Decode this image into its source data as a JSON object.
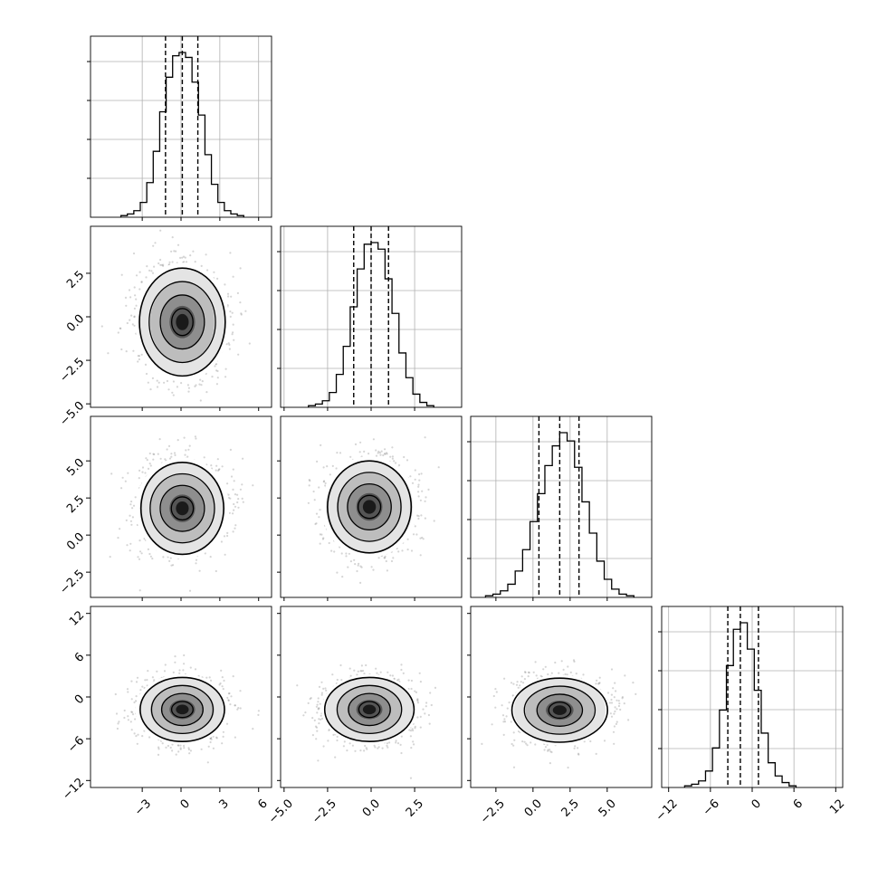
{
  "chart_data": {
    "type": "corner",
    "title": "",
    "grid": true,
    "variables": [
      {
        "range": [
          -7,
          7
        ],
        "ticks": [
          -3,
          0,
          3,
          6
        ],
        "tick_labels": [
          "−3",
          "0",
          "3",
          "6"
        ],
        "quantiles": [
          -1.2,
          0.1,
          1.3
        ],
        "bin_width": 0.5,
        "hist": [
          0.01,
          0.02,
          0.04,
          0.09,
          0.21,
          0.4,
          0.64,
          0.85,
          0.98,
          1.0,
          0.97,
          0.82,
          0.62,
          0.38,
          0.2,
          0.09,
          0.04,
          0.02,
          0.01
        ]
      },
      {
        "range": [
          -5.2,
          5.2
        ],
        "ticks": [
          -5.0,
          -2.5,
          0.0,
          2.5
        ],
        "tick_labels": [
          "−5.0",
          "−2.5",
          "0.0",
          "2.5"
        ],
        "quantiles": [
          -1.0,
          0.0,
          1.0
        ],
        "bin_width": 0.4,
        "hist": [
          0.01,
          0.02,
          0.04,
          0.09,
          0.2,
          0.37,
          0.61,
          0.84,
          0.99,
          1.0,
          0.96,
          0.78,
          0.57,
          0.33,
          0.18,
          0.08,
          0.03,
          0.01
        ]
      },
      {
        "range": [
          -4.2,
          8.0
        ],
        "ticks": [
          -2.5,
          0.0,
          2.5,
          5.0
        ],
        "tick_labels": [
          "−2.5",
          "0.0",
          "2.5",
          "5.0"
        ],
        "quantiles": [
          0.4,
          1.8,
          3.1
        ],
        "bin_width": 0.5,
        "hist": [
          0.01,
          0.02,
          0.04,
          0.08,
          0.16,
          0.29,
          0.46,
          0.63,
          0.8,
          0.92,
          1.0,
          0.95,
          0.79,
          0.58,
          0.39,
          0.22,
          0.11,
          0.05,
          0.02,
          0.01
        ]
      },
      {
        "range": [
          -13,
          13
        ],
        "ticks": [
          -12,
          -6,
          0,
          6,
          12
        ],
        "tick_labels": [
          "−12",
          "−6",
          "0",
          "6",
          "12"
        ],
        "quantiles": [
          -3.5,
          -1.7,
          0.9
        ],
        "bin_width": 1.0,
        "hist": [
          0.01,
          0.02,
          0.04,
          0.1,
          0.24,
          0.47,
          0.74,
          0.96,
          1.0,
          0.84,
          0.59,
          0.33,
          0.15,
          0.07,
          0.03,
          0.01
        ]
      }
    ],
    "pairs": [
      {
        "row": 1,
        "col": 0,
        "center": [
          0.1,
          -0.3
        ],
        "sigma": [
          1.65,
          1.55
        ]
      },
      {
        "row": 2,
        "col": 0,
        "center": [
          0.1,
          1.8
        ],
        "sigma": [
          1.65,
          1.55
        ]
      },
      {
        "row": 2,
        "col": 1,
        "center": [
          -0.1,
          1.9
        ],
        "sigma": [
          1.25,
          1.55
        ]
      },
      {
        "row": 3,
        "col": 0,
        "center": [
          0.1,
          -1.8
        ],
        "sigma": [
          1.65,
          2.3
        ]
      },
      {
        "row": 3,
        "col": 1,
        "center": [
          -0.1,
          -1.8
        ],
        "sigma": [
          1.25,
          2.3
        ]
      },
      {
        "row": 3,
        "col": 2,
        "center": [
          1.8,
          -1.9
        ],
        "sigma": [
          1.55,
          2.3
        ]
      }
    ],
    "contour_levels": [
      0.5,
      1.0,
      1.5,
      2.0
    ]
  }
}
